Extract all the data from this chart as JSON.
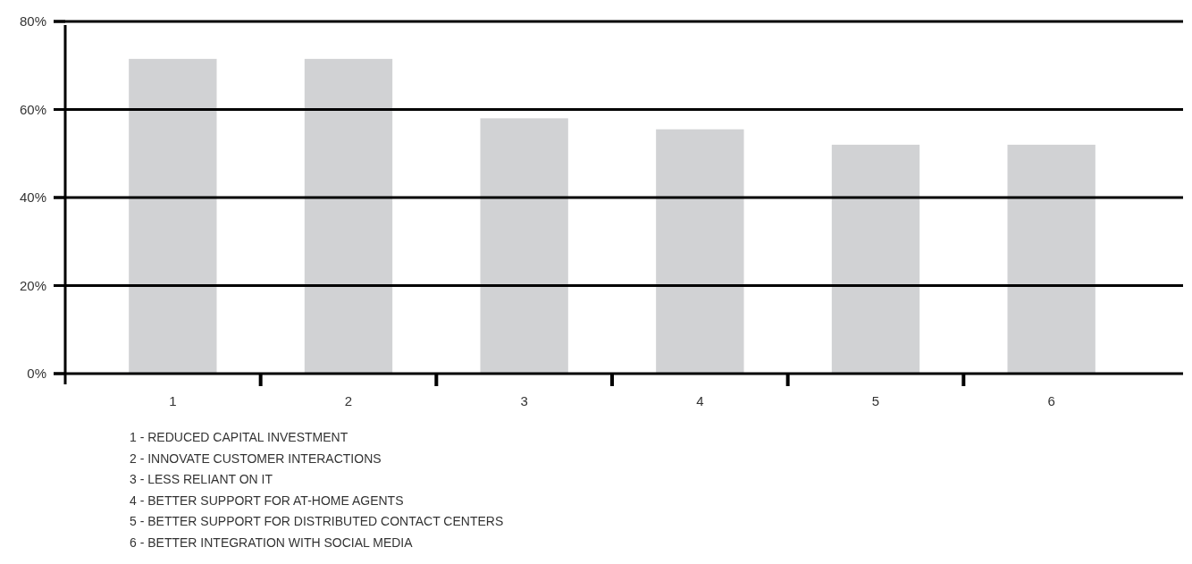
{
  "chart_data": {
    "type": "bar",
    "categories": [
      "1",
      "2",
      "3",
      "4",
      "5",
      "6"
    ],
    "values": [
      71.5,
      71.5,
      58,
      55.5,
      52,
      52
    ],
    "color": "#d1d2d4",
    "ylim": [
      0,
      80
    ],
    "yticks": [
      {
        "value": 0,
        "label": "0%"
      },
      {
        "value": 20,
        "label": "20%"
      },
      {
        "value": 40,
        "label": "40%"
      },
      {
        "value": 60,
        "label": "60%"
      },
      {
        "value": 80,
        "label": "80%"
      }
    ],
    "grid": "y",
    "annotations": [
      "1 - REDUCED CAPITAL INVESTMENT",
      "2 - INNOVATE CUSTOMER INTERACTIONS",
      "3 - LESS RELIANT ON IT",
      "4 - BETTER SUPPORT FOR AT-HOME AGENTS",
      "5 - BETTER SUPPORT FOR DISTRIBUTED CONTACT CENTERS",
      "6 - BETTER INTEGRATION WITH SOCIAL MEDIA"
    ]
  }
}
